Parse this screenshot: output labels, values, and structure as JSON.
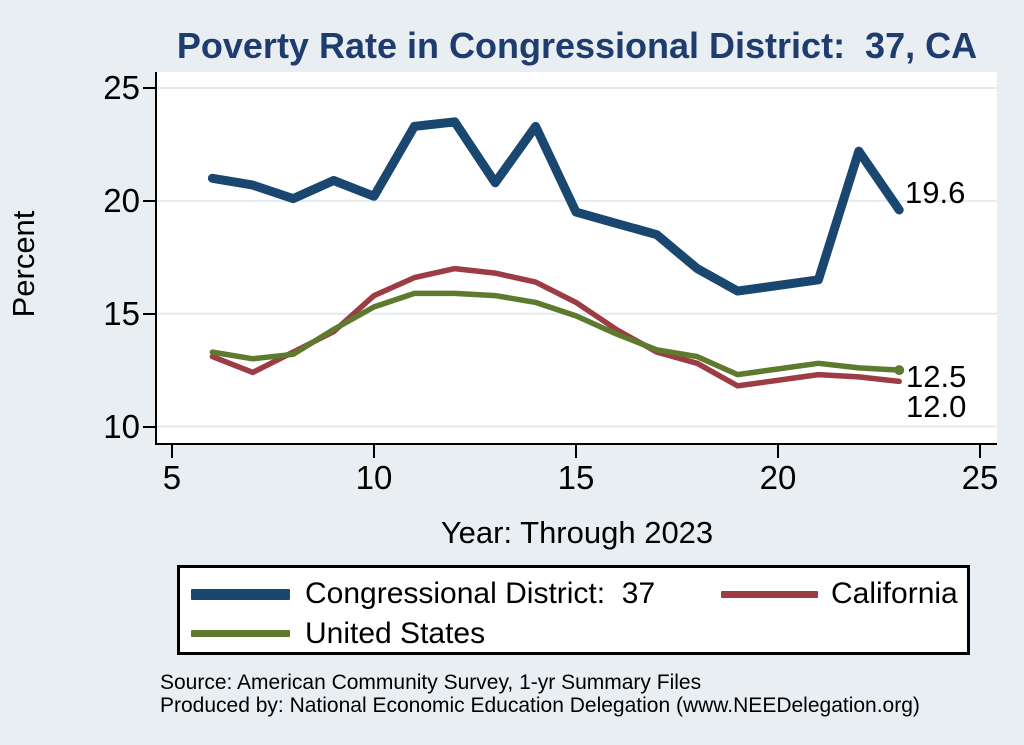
{
  "chart_data": {
    "type": "line",
    "title": "Poverty Rate in Congressional District:  37, CA",
    "xlabel": "Year: Through 2023",
    "ylabel": "Percent",
    "x_ticks": [
      5,
      10,
      15,
      20,
      25
    ],
    "y_ticks": [
      10,
      15,
      20,
      25
    ],
    "xlim": [
      4.63,
      25.42
    ],
    "ylim": [
      9.27,
      25.71
    ],
    "grid": "horizontal gridlines at y ticks",
    "legend_position": "bottom",
    "x": [
      6,
      7,
      8,
      9,
      10,
      11,
      12,
      13,
      14,
      15,
      16,
      17,
      18,
      19,
      21,
      22,
      23
    ],
    "series": [
      {
        "name": "Congressional District:  37",
        "color": "#1a476f",
        "stroke_width": 9,
        "draw_order": 3,
        "end_label": "19.6",
        "end_marker": false,
        "values": [
          21.0,
          20.7,
          20.1,
          20.9,
          20.2,
          23.3,
          23.5,
          20.8,
          23.3,
          19.5,
          19.0,
          18.5,
          17.0,
          16.0,
          16.5,
          22.2,
          19.6
        ]
      },
      {
        "name": "California",
        "color": "#9d3c44",
        "stroke_width": 5.5,
        "draw_order": 1,
        "end_label": "12.0",
        "end_marker": false,
        "values": [
          13.1,
          12.4,
          13.3,
          14.2,
          15.8,
          16.6,
          17.0,
          16.8,
          16.4,
          15.5,
          14.3,
          13.3,
          12.8,
          11.8,
          12.3,
          12.2,
          12.0
        ]
      },
      {
        "name": "United States",
        "color": "#5e7a2e",
        "stroke_width": 5.5,
        "draw_order": 2,
        "end_label": "12.5",
        "end_marker": true,
        "values": [
          13.3,
          13.0,
          13.2,
          14.3,
          15.3,
          15.9,
          15.9,
          15.8,
          15.5,
          14.9,
          14.1,
          13.4,
          13.1,
          12.3,
          12.8,
          12.6,
          12.5
        ]
      }
    ]
  },
  "colors": {
    "background": "#e9eef2",
    "plot_background": "#ffffff",
    "gridline": "#e2ebf3",
    "axis": "#000000",
    "title_text": "#1e3c6e"
  },
  "footer": {
    "line1": "Source: American Community Survey, 1-yr Summary Files",
    "line2": "Produced by: National Economic Education Delegation (www.NEEDelegation.org)"
  }
}
